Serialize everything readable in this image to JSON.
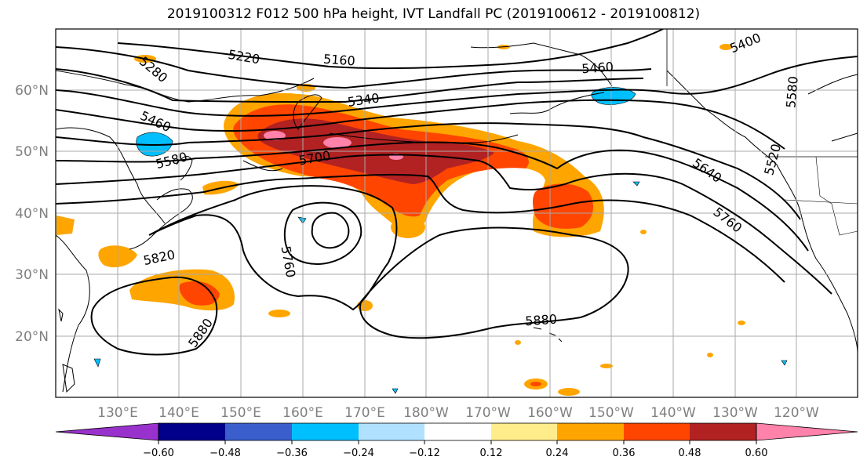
{
  "title": "2019100312 F012 500 hPa height, IVT Landfall PC (2019100612 - 2019100812)",
  "lat_labels": [
    "60°N",
    "50°N",
    "40°N",
    "30°N",
    "20°N"
  ],
  "lon_labels": [
    "130°E",
    "140°E",
    "150°E",
    "160°E",
    "170°E",
    "180°W",
    "170°W",
    "160°W",
    "150°W",
    "140°W",
    "130°W",
    "120°W"
  ],
  "contour_labels": [
    "5220",
    "5160",
    "5280",
    "5340",
    "5460",
    "5460",
    "5400",
    "5580",
    "5580",
    "5700",
    "5640",
    "5760",
    "5760",
    "5820",
    "5880",
    "5880",
    "5520"
  ],
  "colorbar": {
    "ticks": [
      "−0.60",
      "−0.48",
      "−0.36",
      "−0.24",
      "−0.12",
      "0.12",
      "0.24",
      "0.36",
      "0.48",
      "0.60"
    ],
    "colors": [
      "#9932cc",
      "#00008b",
      "#3a5fcd",
      "#00bfff",
      "#b0e2ff",
      "#ffffff",
      "#ffec8b",
      "#ffa500",
      "#ff4500",
      "#b22222",
      "#ff82ab"
    ]
  }
}
